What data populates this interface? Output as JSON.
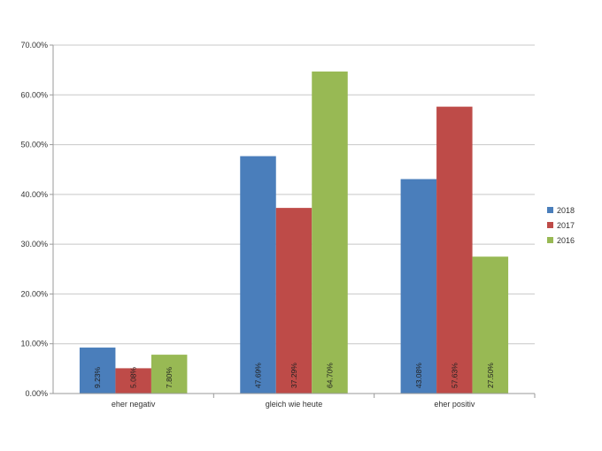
{
  "chart_data": {
    "type": "bar",
    "categories": [
      "eher negativ",
      "gleich wie heute",
      "eher positiv"
    ],
    "series": [
      {
        "name": "2018",
        "color": "#4a7ebb",
        "values": [
          9.23,
          47.69,
          43.08
        ],
        "labels": [
          "9.23%",
          "47.69%",
          "43.08%"
        ]
      },
      {
        "name": "2017",
        "color": "#be4b48",
        "values": [
          5.08,
          37.29,
          57.63
        ],
        "labels": [
          "5.08%",
          "37.29%",
          "57.63%"
        ]
      },
      {
        "name": "2016",
        "color": "#98b954",
        "values": [
          7.8,
          64.7,
          27.5
        ],
        "labels": [
          "7.80%",
          "64.70%",
          "27.50%"
        ]
      }
    ],
    "yticks": [
      "0.00%",
      "10.00%",
      "20.00%",
      "30.00%",
      "40.00%",
      "50.00%",
      "60.00%",
      "70.00%"
    ],
    "ylim": [
      0,
      70
    ],
    "grid": true,
    "legend": "right",
    "title": "",
    "xlabel": "",
    "ylabel": ""
  }
}
